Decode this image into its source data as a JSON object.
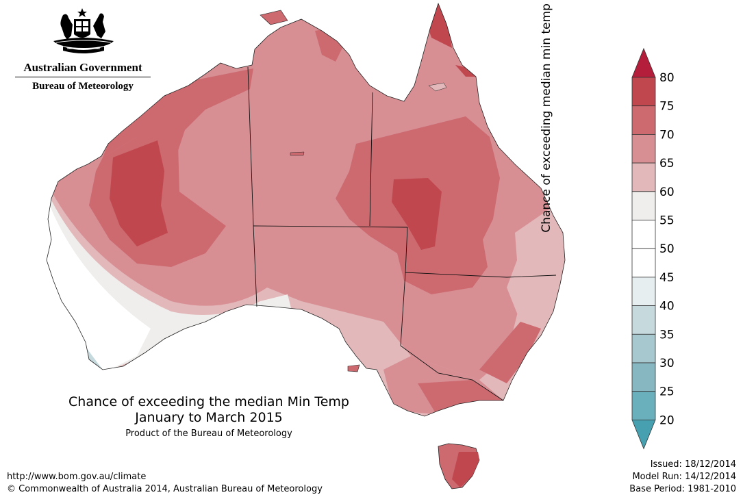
{
  "header": {
    "government": "Australian Government",
    "agency": "Bureau of Meteorology"
  },
  "title": {
    "line1": "Chance of exceeding the median Min Temp",
    "line2": "January to March 2015",
    "credit": "Product of the Bureau of Meteorology"
  },
  "footer": {
    "url": "http://www.bom.gov.au/climate",
    "copyright": "© Commonwealth of Australia 2014, Australian Bureau of Meteorology",
    "issued": "Issued: 18/12/2014",
    "model_run": "Model Run: 14/12/2014",
    "base_period": "Base Period: 1981-2010"
  },
  "legend": {
    "title": "Chance of exceeding median min temp (%)",
    "ticks": [
      "80",
      "75",
      "70",
      "65",
      "60",
      "55",
      "50",
      "45",
      "40",
      "35",
      "30",
      "25",
      "20"
    ],
    "colors": {
      "above_80": "#b41e3a",
      "75_80": "#c1474f",
      "70_75": "#cc6a70",
      "65_70": "#d78f94",
      "60_65": "#e2b8ba",
      "55_60": "#efeeec",
      "50_55": "#ffffff",
      "45_50": "#ffffff",
      "40_45": "#e6eef0",
      "35_40": "#c6d9dd",
      "30_35": "#a7c8ce",
      "25_30": "#87b7c0",
      "20_25": "#6aafbc",
      "below_20": "#46a0b0"
    }
  }
}
